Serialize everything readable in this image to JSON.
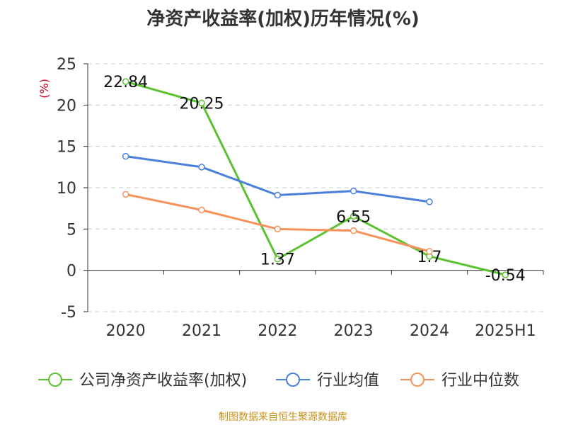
{
  "chart_data": {
    "type": "line",
    "title": "净资产收益率(加权)历年情况(%)",
    "ylabel": "(%)",
    "xlabel": "",
    "categories": [
      "2020",
      "2021",
      "2022",
      "2023",
      "2024",
      "2025H1"
    ],
    "ylim": [
      -5,
      25
    ],
    "yticks": [
      -5,
      0,
      5,
      10,
      15,
      20,
      25
    ],
    "grid": true,
    "legend_position": "bottom",
    "series": [
      {
        "name": "公司净资产收益率(加权)",
        "color": "#5ac12f",
        "values": [
          22.84,
          20.25,
          1.37,
          6.55,
          1.7,
          -0.54
        ],
        "labels": [
          "22.84",
          "20.25",
          "1.37",
          "6.55",
          "1.7",
          "-0.54"
        ]
      },
      {
        "name": "行业均值",
        "color": "#4a7fdc",
        "values": [
          13.8,
          12.5,
          9.1,
          9.6,
          8.3,
          null
        ]
      },
      {
        "name": "行业中位数",
        "color": "#f5915a",
        "values": [
          9.2,
          7.3,
          5.0,
          4.8,
          2.3,
          null
        ]
      }
    ]
  },
  "footer": {
    "source": "制图数据来自恒生聚源数据库"
  }
}
